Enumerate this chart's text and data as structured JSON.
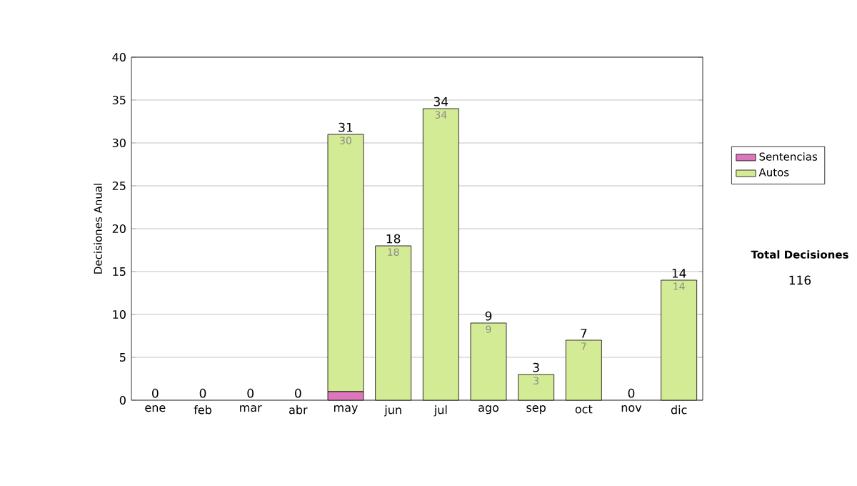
{
  "chart_data": {
    "type": "bar",
    "stacked": true,
    "ylabel": "Decisiones Anual",
    "categories": [
      "ene",
      "feb",
      "mar",
      "abr",
      "may",
      "jun",
      "jul",
      "ago",
      "sep",
      "oct",
      "nov",
      "dic"
    ],
    "series": [
      {
        "name": "Sentencias",
        "color": "#dd77bb",
        "values": [
          0,
          0,
          0,
          0,
          1,
          0,
          0,
          0,
          0,
          0,
          0,
          0
        ]
      },
      {
        "name": "Autos",
        "color": "#d4eb96",
        "values": [
          0,
          0,
          0,
          0,
          30,
          18,
          34,
          9,
          3,
          7,
          0,
          14
        ],
        "value_labels": [
          null,
          null,
          null,
          null,
          "30",
          "18",
          "34",
          "9",
          "3",
          "7",
          null,
          "14"
        ]
      }
    ],
    "totals": [
      "0",
      "0",
      "0",
      "0",
      "31",
      "18",
      "34",
      "9",
      "3",
      "7",
      "0",
      "14"
    ],
    "ylim": [
      0,
      40
    ],
    "yticks": [
      0,
      5,
      10,
      15,
      20,
      25,
      30,
      35,
      40
    ],
    "grid": "y",
    "legend": "right",
    "annotations": [
      "Total Decisiones",
      "116"
    ]
  }
}
